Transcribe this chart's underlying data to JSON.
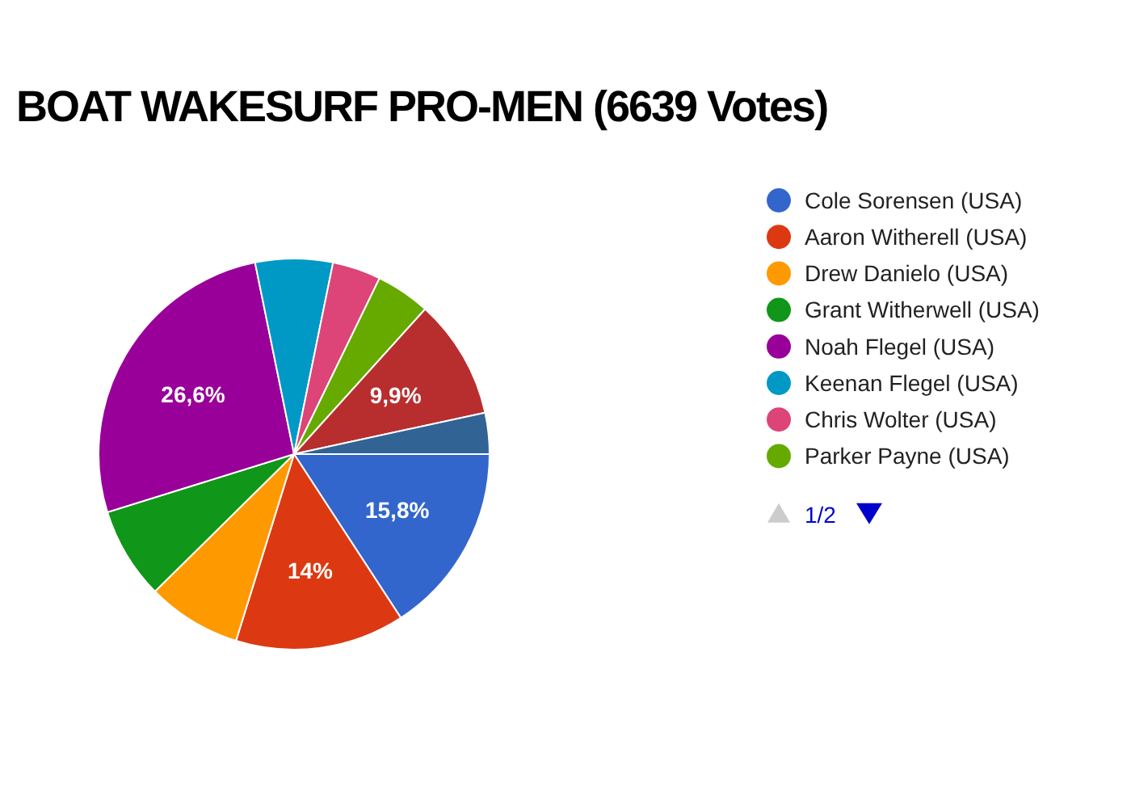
{
  "chart_data": {
    "type": "pie",
    "title": "BOAT WAKESURF PRO-MEN (6639 Votes)",
    "categories": [
      "Cole Sorensen (USA)",
      "Aaron Witherell (USA)",
      "Drew Danielo (USA)",
      "Grant Witherwell (USA)",
      "Noah Flegel (USA)",
      "Keenan Flegel (USA)",
      "Chris Wolter (USA)",
      "Parker Payne (USA)",
      null,
      null
    ],
    "values": [
      15.8,
      14,
      7.8,
      7.6,
      26.6,
      6.4,
      4.0,
      4.5,
      9.9,
      3.4
    ],
    "value_labels": [
      "15,8%",
      "14%",
      null,
      null,
      "26,6%",
      null,
      null,
      null,
      "9,9%",
      null
    ],
    "colors": [
      "#3366cc",
      "#dc3912",
      "#ff9900",
      "#109618",
      "#990099",
      "#0099c6",
      "#dd4477",
      "#66aa00",
      "#b82e2e",
      "#316395"
    ],
    "legend": "right",
    "annotations": [
      "1/2"
    ]
  }
}
